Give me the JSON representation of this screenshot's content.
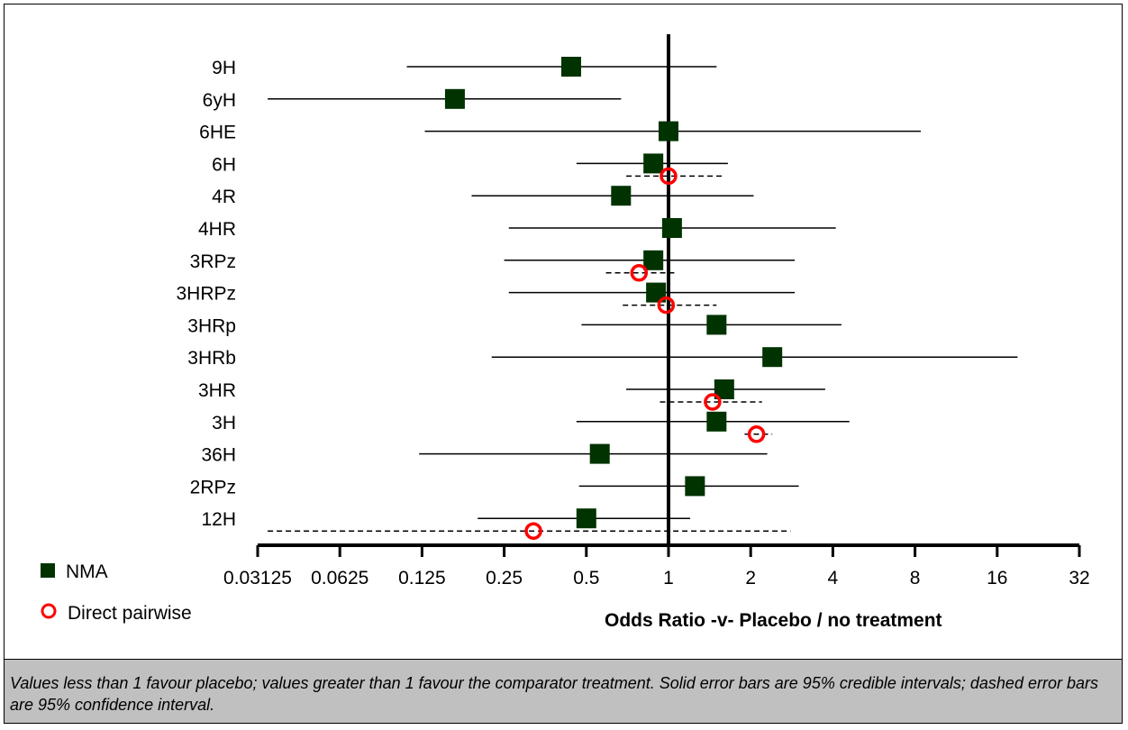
{
  "chart_data": {
    "type": "forest",
    "xlabel": "Odds Ratio -v- Placebo / no treatment",
    "xscale": "log2",
    "xlim": [
      0.03125,
      32
    ],
    "xticks": [
      "0.03125",
      "0.0625",
      "0.125",
      "0.25",
      "0.5",
      "1",
      "2",
      "4",
      "8",
      "16",
      "32"
    ],
    "xtick_values": [
      0.03125,
      0.0625,
      0.125,
      0.25,
      0.5,
      1,
      2,
      4,
      8,
      16,
      32
    ],
    "reference_line": 1,
    "rows": [
      {
        "label": "9H",
        "nma": {
          "or": 0.44,
          "lo": 0.11,
          "hi": 1.5
        },
        "direct": null
      },
      {
        "label": "6yH",
        "nma": {
          "or": 0.165,
          "lo": 0.034,
          "hi": 0.67
        },
        "direct": null
      },
      {
        "label": "6HE",
        "nma": {
          "or": 1.0,
          "lo": 0.128,
          "hi": 8.4
        },
        "direct": null
      },
      {
        "label": "6H",
        "nma": {
          "or": 0.88,
          "lo": 0.46,
          "hi": 1.65
        },
        "direct": {
          "or": 1.0,
          "lo": 0.7,
          "hi": 1.6
        }
      },
      {
        "label": "4R",
        "nma": {
          "or": 0.67,
          "lo": 0.19,
          "hi": 2.05
        },
        "direct": null
      },
      {
        "label": "4HR",
        "nma": {
          "or": 1.03,
          "lo": 0.26,
          "hi": 4.1
        },
        "direct": null
      },
      {
        "label": "3RPz",
        "nma": {
          "or": 0.88,
          "lo": 0.25,
          "hi": 2.9
        },
        "direct": {
          "or": 0.78,
          "lo": 0.59,
          "hi": 1.05
        }
      },
      {
        "label": "3HRPz",
        "nma": {
          "or": 0.9,
          "lo": 0.26,
          "hi": 2.9
        },
        "direct": {
          "or": 0.98,
          "lo": 0.68,
          "hi": 1.5
        }
      },
      {
        "label": "3HRp",
        "nma": {
          "or": 1.5,
          "lo": 0.48,
          "hi": 4.3
        },
        "direct": null
      },
      {
        "label": "3HRb",
        "nma": {
          "or": 2.4,
          "lo": 0.225,
          "hi": 19
        },
        "direct": null
      },
      {
        "label": "3HR",
        "nma": {
          "or": 1.6,
          "lo": 0.7,
          "hi": 3.75
        },
        "direct": {
          "or": 1.45,
          "lo": 0.93,
          "hi": 2.2
        }
      },
      {
        "label": "3H",
        "nma": {
          "or": 1.5,
          "lo": 0.46,
          "hi": 4.6
        },
        "direct": {
          "or": 2.1,
          "lo": 1.9,
          "hi": 2.4
        }
      },
      {
        "label": "36H",
        "nma": {
          "or": 0.56,
          "lo": 0.122,
          "hi": 2.3
        },
        "direct": null
      },
      {
        "label": "2RPz",
        "nma": {
          "or": 1.25,
          "lo": 0.47,
          "hi": 3.0
        },
        "direct": null
      },
      {
        "label": "12H",
        "nma": {
          "or": 0.5,
          "lo": 0.2,
          "hi": 1.2
        },
        "direct": {
          "or": 0.32,
          "lo": 0.034,
          "hi": 2.8
        }
      }
    ],
    "legend": [
      {
        "name": "NMA",
        "marker": "square",
        "color": "#003300"
      },
      {
        "name": "Direct pairwise",
        "marker": "circle",
        "color": "#ff0000"
      }
    ]
  },
  "legend": {
    "nma_label": "NMA",
    "direct_label": "Direct pairwise"
  },
  "caption": "Values less than 1 favour placebo; values greater than 1 favour the comparator treatment. Solid error bars are 95% credible intervals; dashed error bars are 95% confidence interval.",
  "colors": {
    "nma_marker": "#003300",
    "direct_marker": "#ff0000",
    "caption_bg": "#c0c0c0"
  }
}
